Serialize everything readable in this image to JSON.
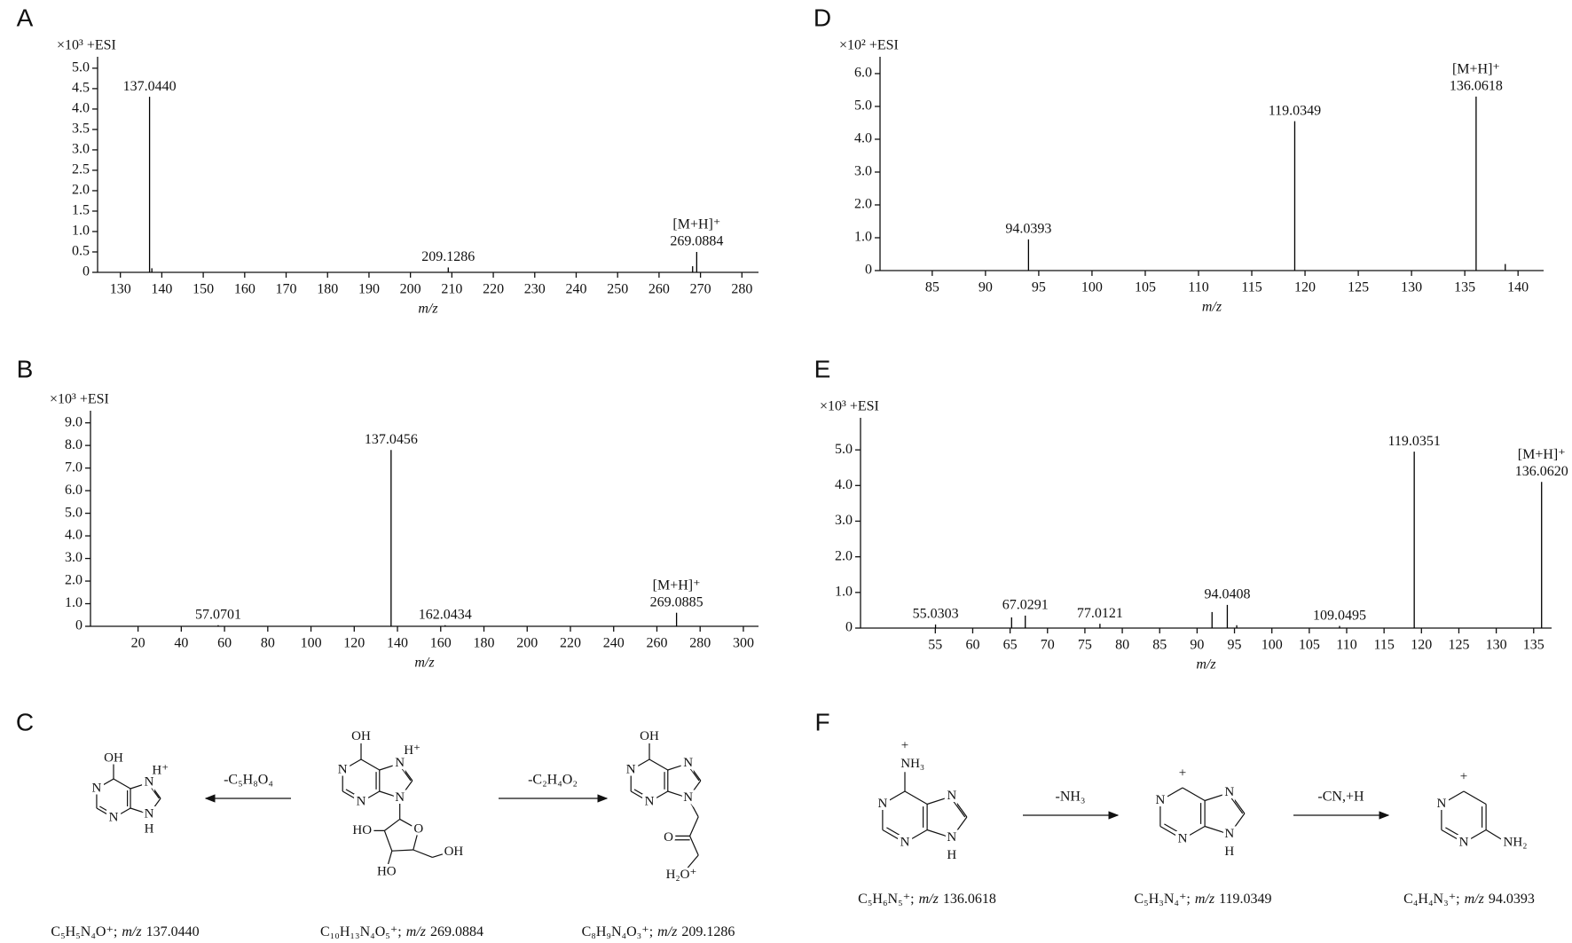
{
  "chart_data": [
    {
      "type": "bar",
      "panel": "A",
      "y_scale_label": "×10³  +ESI",
      "xlabel": "m/z",
      "color": "#000000",
      "x": [
        137.044,
        137.6,
        209.1286,
        268.1,
        269.0884
      ],
      "values": [
        4.3,
        0.1,
        0.12,
        0.15,
        0.5
      ],
      "x_labels": [
        "137.0440",
        null,
        "209.1286",
        null,
        "269.0884"
      ],
      "ion_label": "[M+H]⁺",
      "xlim": [
        124.5,
        284
      ],
      "ylim": [
        0,
        5.15
      ],
      "xticks": [
        130,
        140,
        150,
        160,
        170,
        180,
        190,
        200,
        210,
        220,
        230,
        240,
        250,
        260,
        270,
        280
      ],
      "yticks": [
        0,
        0.5,
        {
          "value": 1,
          "label": "1.0"
        },
        1.5,
        {
          "value": 2,
          "label": "2.0"
        },
        2.5,
        {
          "value": 3,
          "label": "3.0"
        },
        3.5,
        {
          "value": 4,
          "label": "4.0"
        },
        4.5,
        {
          "value": 5,
          "label": "5.0"
        }
      ]
    },
    {
      "type": "bar",
      "panel": "B",
      "y_scale_label": "×10³  +ESI",
      "xlabel": "m/z",
      "color": "#000000",
      "x": [
        57.0701,
        137.0456,
        162.0434,
        269.0885
      ],
      "values": [
        0.05,
        7.8,
        0.05,
        0.6
      ],
      "x_labels": [
        "57.0701",
        "137.0456",
        "162.0434",
        "269.0885"
      ],
      "ion_label": "[M+H]⁺",
      "xlim": [
        -2,
        307
      ],
      "ylim": [
        0,
        9.3
      ],
      "xticks": [
        20,
        40,
        60,
        80,
        100,
        120,
        140,
        160,
        180,
        200,
        220,
        240,
        260,
        280,
        300
      ],
      "yticks": [
        0,
        {
          "value": 1,
          "label": "1.0"
        },
        {
          "value": 2,
          "label": "2.0"
        },
        {
          "value": 3,
          "label": "3.0"
        },
        {
          "value": 4,
          "label": "4.0"
        },
        {
          "value": 5,
          "label": "5.0"
        },
        {
          "value": 6,
          "label": "6.0"
        },
        {
          "value": 7,
          "label": "7.0"
        },
        {
          "value": 8,
          "label": "8.0"
        },
        {
          "value": 9,
          "label": "9.0"
        }
      ]
    },
    {
      "type": "bar",
      "panel": "D",
      "y_scale_label": "×10²  +ESI",
      "xlabel": "m/z",
      "color": "#000000",
      "x": [
        94.0393,
        119.0349,
        136.0618,
        138.8
      ],
      "values": [
        0.95,
        4.55,
        5.3,
        0.2
      ],
      "x_labels": [
        "94.0393",
        "119.0349",
        "136.0618",
        null
      ],
      "ion_label": "[M+H]⁺",
      "xlim": [
        80.1,
        142.4
      ],
      "ylim": [
        0,
        6.35
      ],
      "xticks": [
        85,
        90,
        95,
        100,
        105,
        110,
        115,
        120,
        125,
        130,
        135,
        140
      ],
      "yticks": [
        0,
        {
          "value": 1,
          "label": "1.0"
        },
        {
          "value": 2,
          "label": "2.0"
        },
        {
          "value": 3,
          "label": "3.0"
        },
        {
          "value": 4,
          "label": "4.0"
        },
        {
          "value": 5,
          "label": "5.0"
        },
        {
          "value": 6,
          "label": "6.0"
        }
      ]
    },
    {
      "type": "bar",
      "panel": "E",
      "y_scale_label": "×10³  +ESI",
      "xlabel": "m/z",
      "color": "#000000",
      "x": [
        55.0303,
        65.2,
        67.0291,
        77.0121,
        92.0,
        94.0408,
        95.3,
        109.0495,
        119.0351,
        136.062
      ],
      "values": [
        0.1,
        0.3,
        0.35,
        0.12,
        0.45,
        0.65,
        0.08,
        0.06,
        4.95,
        4.1
      ],
      "x_labels": [
        "55.0303",
        null,
        "67.0291",
        "77.0121",
        null,
        "94.0408",
        null,
        "109.0495",
        "119.0351",
        "136.0620"
      ],
      "ion_label": "[M+H]⁺",
      "xlim": [
        45,
        137.4
      ],
      "ylim": [
        0,
        5.75
      ],
      "xticks": [
        55,
        60,
        65,
        70,
        75,
        80,
        85,
        90,
        95,
        100,
        105,
        110,
        115,
        120,
        125,
        130,
        135
      ],
      "yticks": [
        0,
        {
          "value": 1,
          "label": "1.0"
        },
        {
          "value": 2,
          "label": "2.0"
        },
        {
          "value": 3,
          "label": "3.0"
        },
        {
          "value": 4,
          "label": "4.0"
        },
        {
          "value": 5,
          "label": "5.0"
        }
      ]
    }
  ],
  "schemes": [
    {
      "panel": "C",
      "arrows": [
        "-C₅H₈O₄",
        "-C₂H₄O₂"
      ],
      "structures": [
        {
          "atoms": [
            "OH",
            "N",
            "N",
            "N",
            "H⁺",
            "N",
            "H"
          ],
          "formula": "C₅H₅N₄O⁺;",
          "mz_prefix": "m/z",
          "mz": "137.0440"
        },
        {
          "atoms": [
            "OH",
            "N",
            "N",
            "N",
            "H⁺",
            "N",
            "HO",
            "O",
            "HO",
            "OH"
          ],
          "formula": "C₁₀H₁₃N₄O₅⁺;",
          "mz_prefix": "m/z",
          "mz": "269.0884"
        },
        {
          "atoms": [
            "OH",
            "N",
            "N",
            "N",
            "N",
            "O",
            "H₂O⁺"
          ],
          "formula": "C₈H₉N₄O₃⁺;",
          "mz_prefix": "m/z",
          "mz": "209.1286"
        }
      ]
    },
    {
      "panel": "F",
      "arrows": [
        "-NH₃",
        "-CN,+H"
      ],
      "structures": [
        {
          "atoms": [
            "NH₃",
            "+",
            "N",
            "N",
            "N",
            "N",
            "H"
          ],
          "formula": "C₅H₆N₅⁺;",
          "mz_prefix": "m/z",
          "mz": "136.0618"
        },
        {
          "atoms": [
            "+",
            "N",
            "N",
            "N",
            "N",
            "H"
          ],
          "formula": "C₅H₃N₄⁺;",
          "mz_prefix": "m/z",
          "mz": "119.0349"
        },
        {
          "atoms": [
            "+",
            "N",
            "N",
            "NH₂"
          ],
          "formula": "C₄H₄N₃⁺;",
          "mz_prefix": "m/z",
          "mz": "94.0393"
        }
      ]
    }
  ]
}
